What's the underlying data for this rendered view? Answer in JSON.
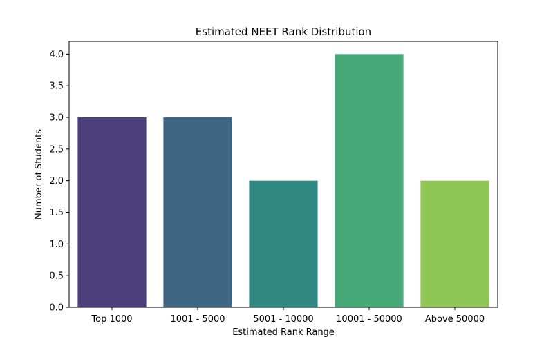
{
  "chart_data": {
    "type": "bar",
    "title": "Estimated NEET Rank Distribution",
    "xlabel": "Estimated Rank Range",
    "ylabel": "Number of Students",
    "categories": [
      "Top 1000",
      "1001 - 5000",
      "5001 - 10000",
      "10001 - 50000",
      "Above 50000"
    ],
    "values": [
      3,
      3,
      2,
      4,
      2
    ],
    "colors": [
      "#4a3f7a",
      "#3e6683",
      "#2e8781",
      "#47a978",
      "#8fc656"
    ],
    "ylim": [
      0,
      4.2
    ],
    "yticks": [
      "0.0",
      "0.5",
      "1.0",
      "1.5",
      "2.0",
      "2.5",
      "3.0",
      "3.5",
      "4.0"
    ],
    "grid": false,
    "legend": "none"
  }
}
